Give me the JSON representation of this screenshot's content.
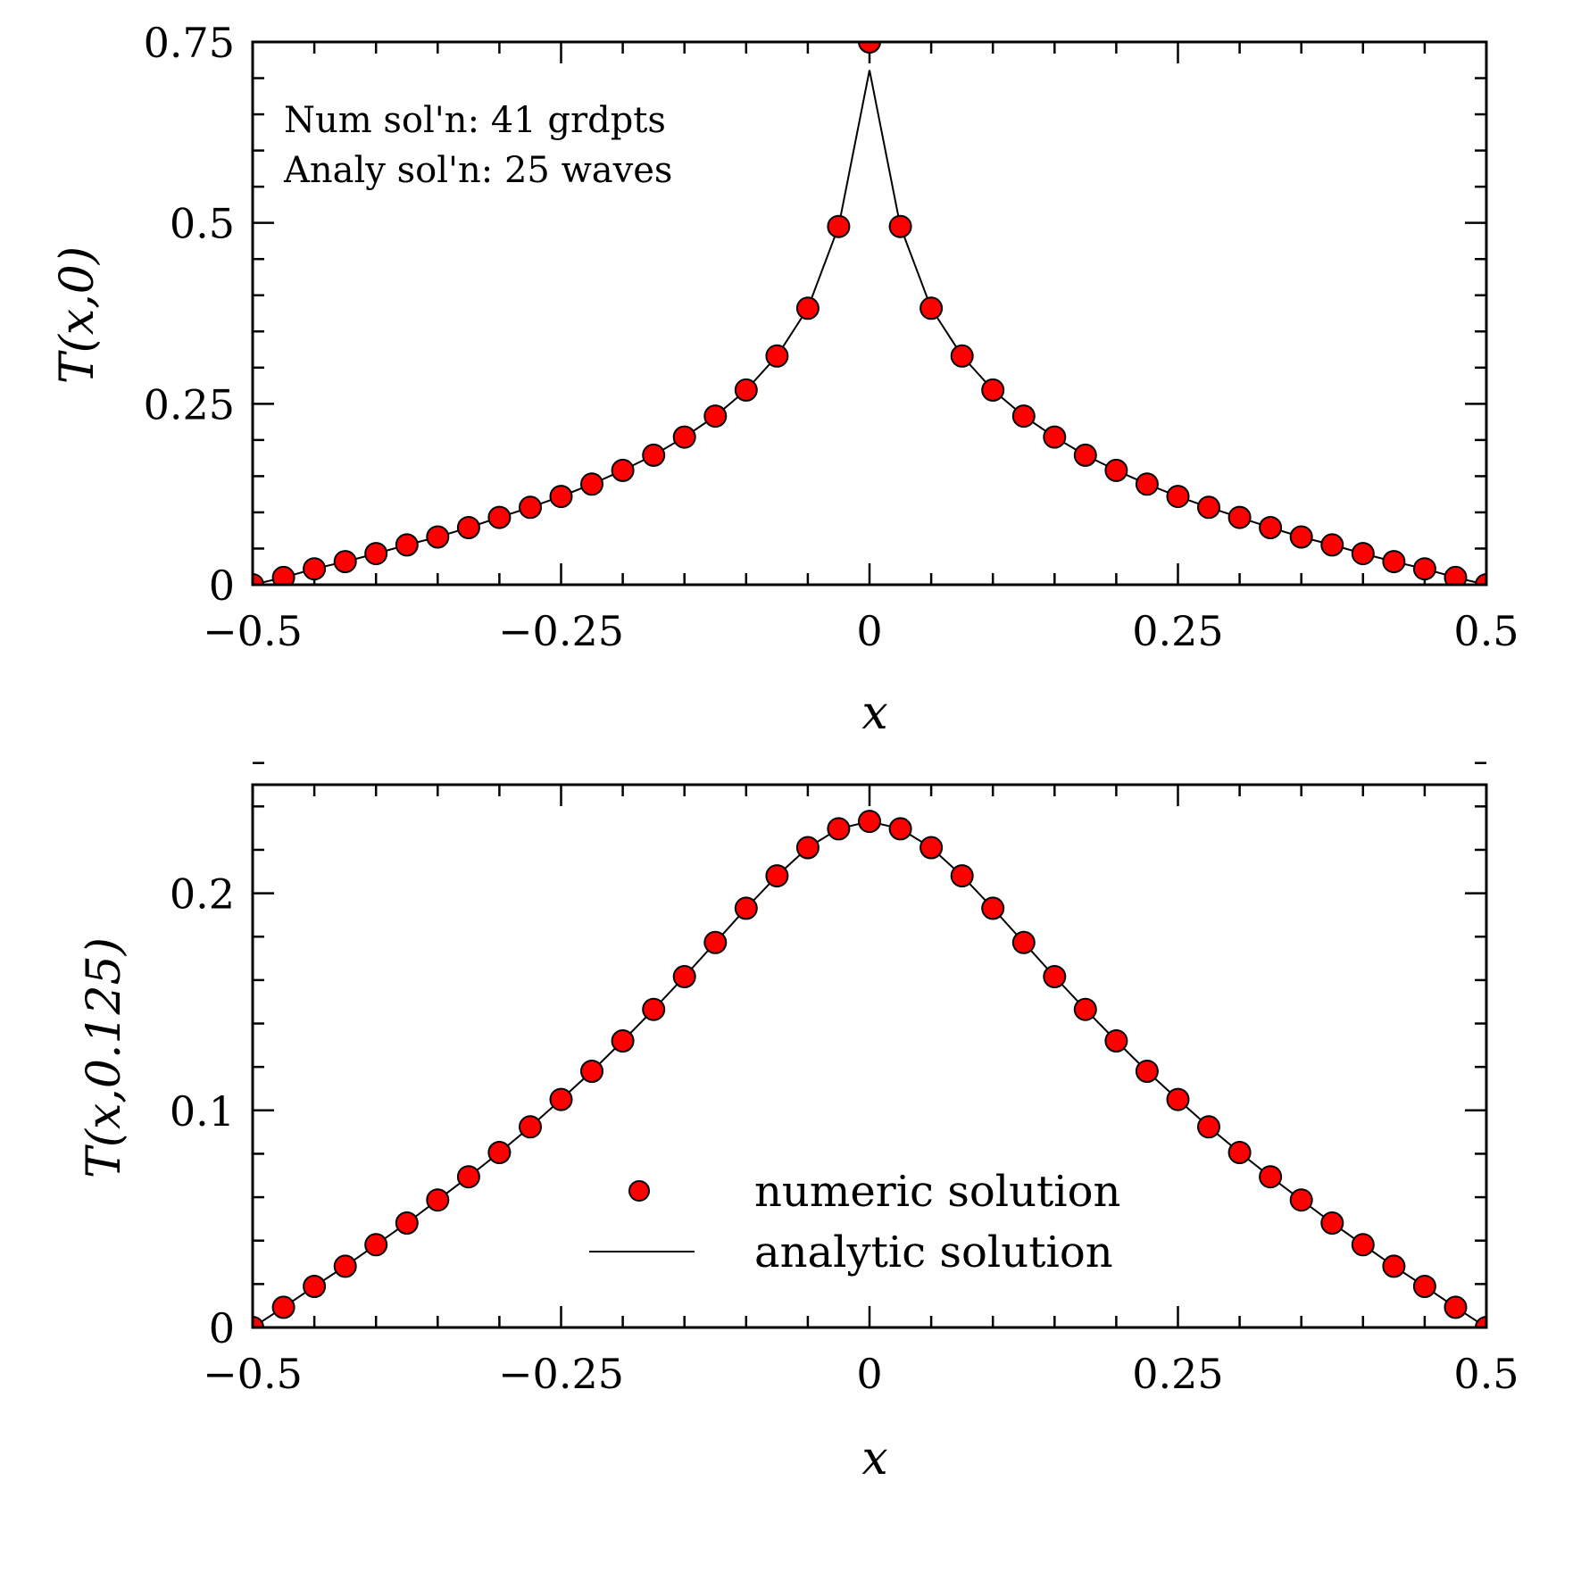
{
  "colors": {
    "marker_fill": "#ff0000",
    "marker_stroke": "#000000",
    "line": "#000000",
    "axis": "#000000"
  },
  "chart_data": [
    {
      "type": "line",
      "ylabel": "T(x,0)",
      "xlabel": "x",
      "xlim": [
        -0.5,
        0.5
      ],
      "ylim": [
        0,
        0.75
      ],
      "grid": false,
      "x_major_ticks": [
        -0.5,
        -0.25,
        0,
        0.25,
        0.5
      ],
      "x_tick_labels": [
        "−0.5",
        "−0.25",
        "0",
        "0.25",
        "0.5"
      ],
      "x_minor_step": 0.05,
      "y_major_ticks": [
        0,
        0.25,
        0.5,
        0.75
      ],
      "y_tick_labels": [
        "0",
        "0.25",
        "0.5",
        "0.75"
      ],
      "y_minor_step": 0.05,
      "annotations": [
        "Num sol'n: 41 grdpts",
        "Analy sol'n: 25 waves"
      ],
      "x": [
        -0.5,
        -0.475,
        -0.45,
        -0.425,
        -0.4,
        -0.375,
        -0.35,
        -0.325,
        -0.3,
        -0.275,
        -0.25,
        -0.225,
        -0.2,
        -0.175,
        -0.15,
        -0.125,
        -0.1,
        -0.075,
        -0.05,
        -0.025,
        0,
        0.025,
        0.05,
        0.075,
        0.1,
        0.125,
        0.15,
        0.175,
        0.2,
        0.225,
        0.25,
        0.275,
        0.3,
        0.325,
        0.35,
        0.375,
        0.4,
        0.425,
        0.45,
        0.475,
        0.5
      ],
      "series": [
        {
          "name": "numeric solution",
          "style": "markers",
          "values": [
            0,
            0.01,
            0.022,
            0.032,
            0.043,
            0.055,
            0.066,
            0.079,
            0.093,
            0.107,
            0.122,
            0.139,
            0.158,
            0.179,
            0.204,
            0.233,
            0.269,
            0.316,
            0.382,
            0.495,
            0.75,
            0.495,
            0.382,
            0.316,
            0.269,
            0.233,
            0.204,
            0.179,
            0.158,
            0.139,
            0.122,
            0.107,
            0.093,
            0.079,
            0.066,
            0.055,
            0.043,
            0.032,
            0.022,
            0.01,
            0
          ]
        },
        {
          "name": "analytic solution",
          "style": "line",
          "values": [
            0,
            0.01,
            0.022,
            0.032,
            0.043,
            0.055,
            0.066,
            0.079,
            0.093,
            0.107,
            0.122,
            0.139,
            0.158,
            0.179,
            0.204,
            0.233,
            0.269,
            0.316,
            0.382,
            0.495,
            0.711,
            0.495,
            0.382,
            0.316,
            0.269,
            0.233,
            0.204,
            0.179,
            0.158,
            0.139,
            0.122,
            0.107,
            0.093,
            0.079,
            0.066,
            0.055,
            0.043,
            0.032,
            0.022,
            0.01,
            0
          ]
        }
      ]
    },
    {
      "type": "line",
      "ylabel": "T(x,0.125)",
      "xlabel": "x",
      "xlim": [
        -0.5,
        0.5
      ],
      "ylim": [
        0,
        0.25
      ],
      "grid": false,
      "x_major_ticks": [
        -0.5,
        -0.25,
        0,
        0.25,
        0.5
      ],
      "x_tick_labels": [
        "−0.5",
        "−0.25",
        "0",
        "0.25",
        "0.5"
      ],
      "x_minor_step": 0.05,
      "y_major_ticks": [
        0,
        0.1,
        0.2
      ],
      "y_tick_labels": [
        "0",
        "0.1",
        "0.2"
      ],
      "y_minor_step": 0.02,
      "legend": {
        "placement": "lower-center",
        "entries": [
          "numeric solution",
          "analytic solution"
        ]
      },
      "x": [
        -0.5,
        -0.475,
        -0.45,
        -0.425,
        -0.4,
        -0.375,
        -0.35,
        -0.325,
        -0.3,
        -0.275,
        -0.25,
        -0.225,
        -0.2,
        -0.175,
        -0.15,
        -0.125,
        -0.1,
        -0.075,
        -0.05,
        -0.025,
        0,
        0.025,
        0.05,
        0.075,
        0.1,
        0.125,
        0.15,
        0.175,
        0.2,
        0.225,
        0.25,
        0.275,
        0.3,
        0.325,
        0.35,
        0.375,
        0.4,
        0.425,
        0.45,
        0.475,
        0.5
      ],
      "series": [
        {
          "name": "numeric solution",
          "style": "markers",
          "values": [
            0,
            0.0093,
            0.0189,
            0.0282,
            0.0381,
            0.0481,
            0.0587,
            0.0694,
            0.0806,
            0.0924,
            0.105,
            0.118,
            0.132,
            0.1465,
            0.1616,
            0.1773,
            0.1931,
            0.208,
            0.221,
            0.2297,
            0.2331,
            0.2297,
            0.221,
            0.208,
            0.1931,
            0.1773,
            0.1616,
            0.1465,
            0.132,
            0.118,
            0.105,
            0.0924,
            0.0806,
            0.0694,
            0.0587,
            0.0481,
            0.0381,
            0.0282,
            0.0189,
            0.0093,
            0
          ]
        },
        {
          "name": "analytic solution",
          "style": "line",
          "values": [
            0,
            0.0093,
            0.0189,
            0.0282,
            0.0381,
            0.0481,
            0.0587,
            0.0694,
            0.0806,
            0.0924,
            0.105,
            0.118,
            0.132,
            0.1465,
            0.1616,
            0.1773,
            0.1931,
            0.208,
            0.221,
            0.2297,
            0.2331,
            0.2297,
            0.221,
            0.208,
            0.1931,
            0.1773,
            0.1616,
            0.1465,
            0.132,
            0.118,
            0.105,
            0.0924,
            0.0806,
            0.0694,
            0.0587,
            0.0481,
            0.0381,
            0.0282,
            0.0189,
            0.0093,
            0
          ]
        }
      ]
    }
  ]
}
